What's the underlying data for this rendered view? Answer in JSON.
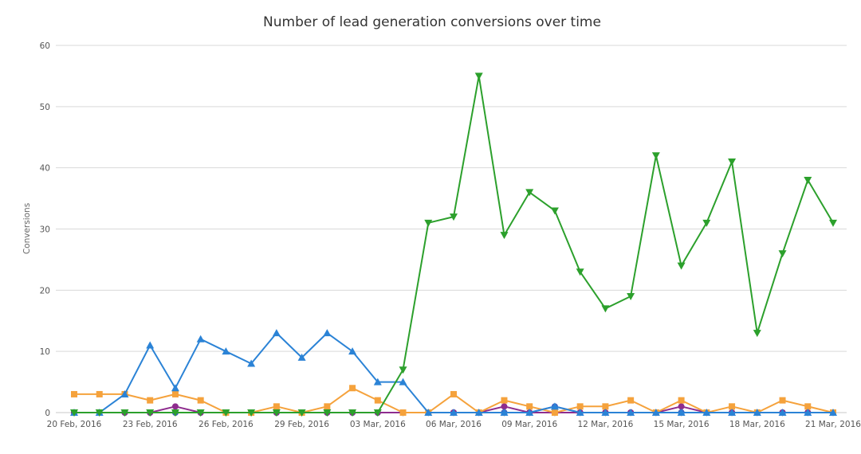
{
  "chart_data": {
    "type": "line",
    "title": "Number of lead generation conversions over time",
    "xlabel": "",
    "ylabel": "Conversions",
    "ylim": [
      0,
      60
    ],
    "yticks": [
      "0",
      "10",
      "20",
      "30",
      "40",
      "50",
      "60"
    ],
    "x": [
      "2016-02-20",
      "2016-02-21",
      "2016-02-22",
      "2016-02-23",
      "2016-02-24",
      "2016-02-25",
      "2016-02-26",
      "2016-02-27",
      "2016-02-28",
      "2016-02-29",
      "2016-03-01",
      "2016-03-02",
      "2016-03-03",
      "2016-03-04",
      "2016-03-05",
      "2016-03-06",
      "2016-03-07",
      "2016-03-08",
      "2016-03-09",
      "2016-03-10",
      "2016-03-11",
      "2016-03-12",
      "2016-03-13",
      "2016-03-14",
      "2016-03-15",
      "2016-03-16",
      "2016-03-17",
      "2016-03-18",
      "2016-03-19",
      "2016-03-20",
      "2016-03-21"
    ],
    "xtick_labels": [
      "20 Feb, 2016",
      "23 Feb, 2016",
      "26 Feb, 2016",
      "29 Feb, 2016",
      "03 Mar, 2016",
      "06 Mar, 2016",
      "09 Mar, 2016",
      "12 Mar, 2016",
      "15 Mar, 2016",
      "18 Mar, 2016",
      "21 Mar, 2016"
    ],
    "grid": true,
    "series": [
      {
        "color": "#2b83d6",
        "marker": "triangle-up",
        "values": [
          0,
          0,
          3,
          11,
          4,
          12,
          10,
          8,
          13,
          9,
          13,
          10,
          5,
          5,
          0,
          0,
          0,
          0,
          0,
          1,
          0,
          0,
          0,
          0,
          0,
          0,
          0,
          0,
          0,
          0,
          0
        ]
      },
      {
        "color": "#f5a23c",
        "marker": "square",
        "values": [
          3,
          3,
          3,
          2,
          3,
          2,
          0,
          0,
          1,
          0,
          1,
          4,
          2,
          0,
          0,
          3,
          0,
          2,
          1,
          0,
          1,
          1,
          2,
          0,
          2,
          0,
          1,
          0,
          2,
          1,
          0
        ]
      },
      {
        "color": "#8e2c8e",
        "marker": "circle",
        "values": [
          0,
          0,
          0,
          0,
          1,
          0,
          0,
          0,
          0,
          0,
          0,
          0,
          0,
          0,
          0,
          0,
          0,
          1,
          0,
          0,
          0,
          0,
          0,
          0,
          1,
          0,
          0,
          0,
          0,
          0,
          0
        ]
      },
      {
        "color": "#5a5a5a",
        "marker": "circle",
        "values": [
          0,
          0,
          0,
          0,
          0,
          0,
          0,
          0,
          0,
          0,
          0,
          0,
          0,
          0,
          0,
          0,
          0,
          0,
          0,
          0,
          0,
          0,
          0,
          0,
          0,
          0,
          0,
          0,
          0,
          0,
          0
        ]
      },
      {
        "color": "#3c5fc4",
        "marker": "circle",
        "values": [
          0,
          0,
          0,
          0,
          0,
          0,
          0,
          0,
          0,
          0,
          0,
          0,
          0,
          0,
          0,
          0,
          0,
          0,
          0,
          1,
          0,
          0,
          0,
          0,
          0,
          0,
          0,
          0,
          0,
          0,
          0
        ]
      },
      {
        "color": "#2ca02c",
        "marker": "triangle-down",
        "values": [
          0,
          0,
          0,
          0,
          0,
          0,
          0,
          0,
          0,
          0,
          0,
          0,
          0,
          7,
          31,
          32,
          55,
          29,
          36,
          33,
          23,
          17,
          19,
          42,
          24,
          31,
          41,
          13,
          26,
          38,
          31
        ]
      }
    ]
  }
}
